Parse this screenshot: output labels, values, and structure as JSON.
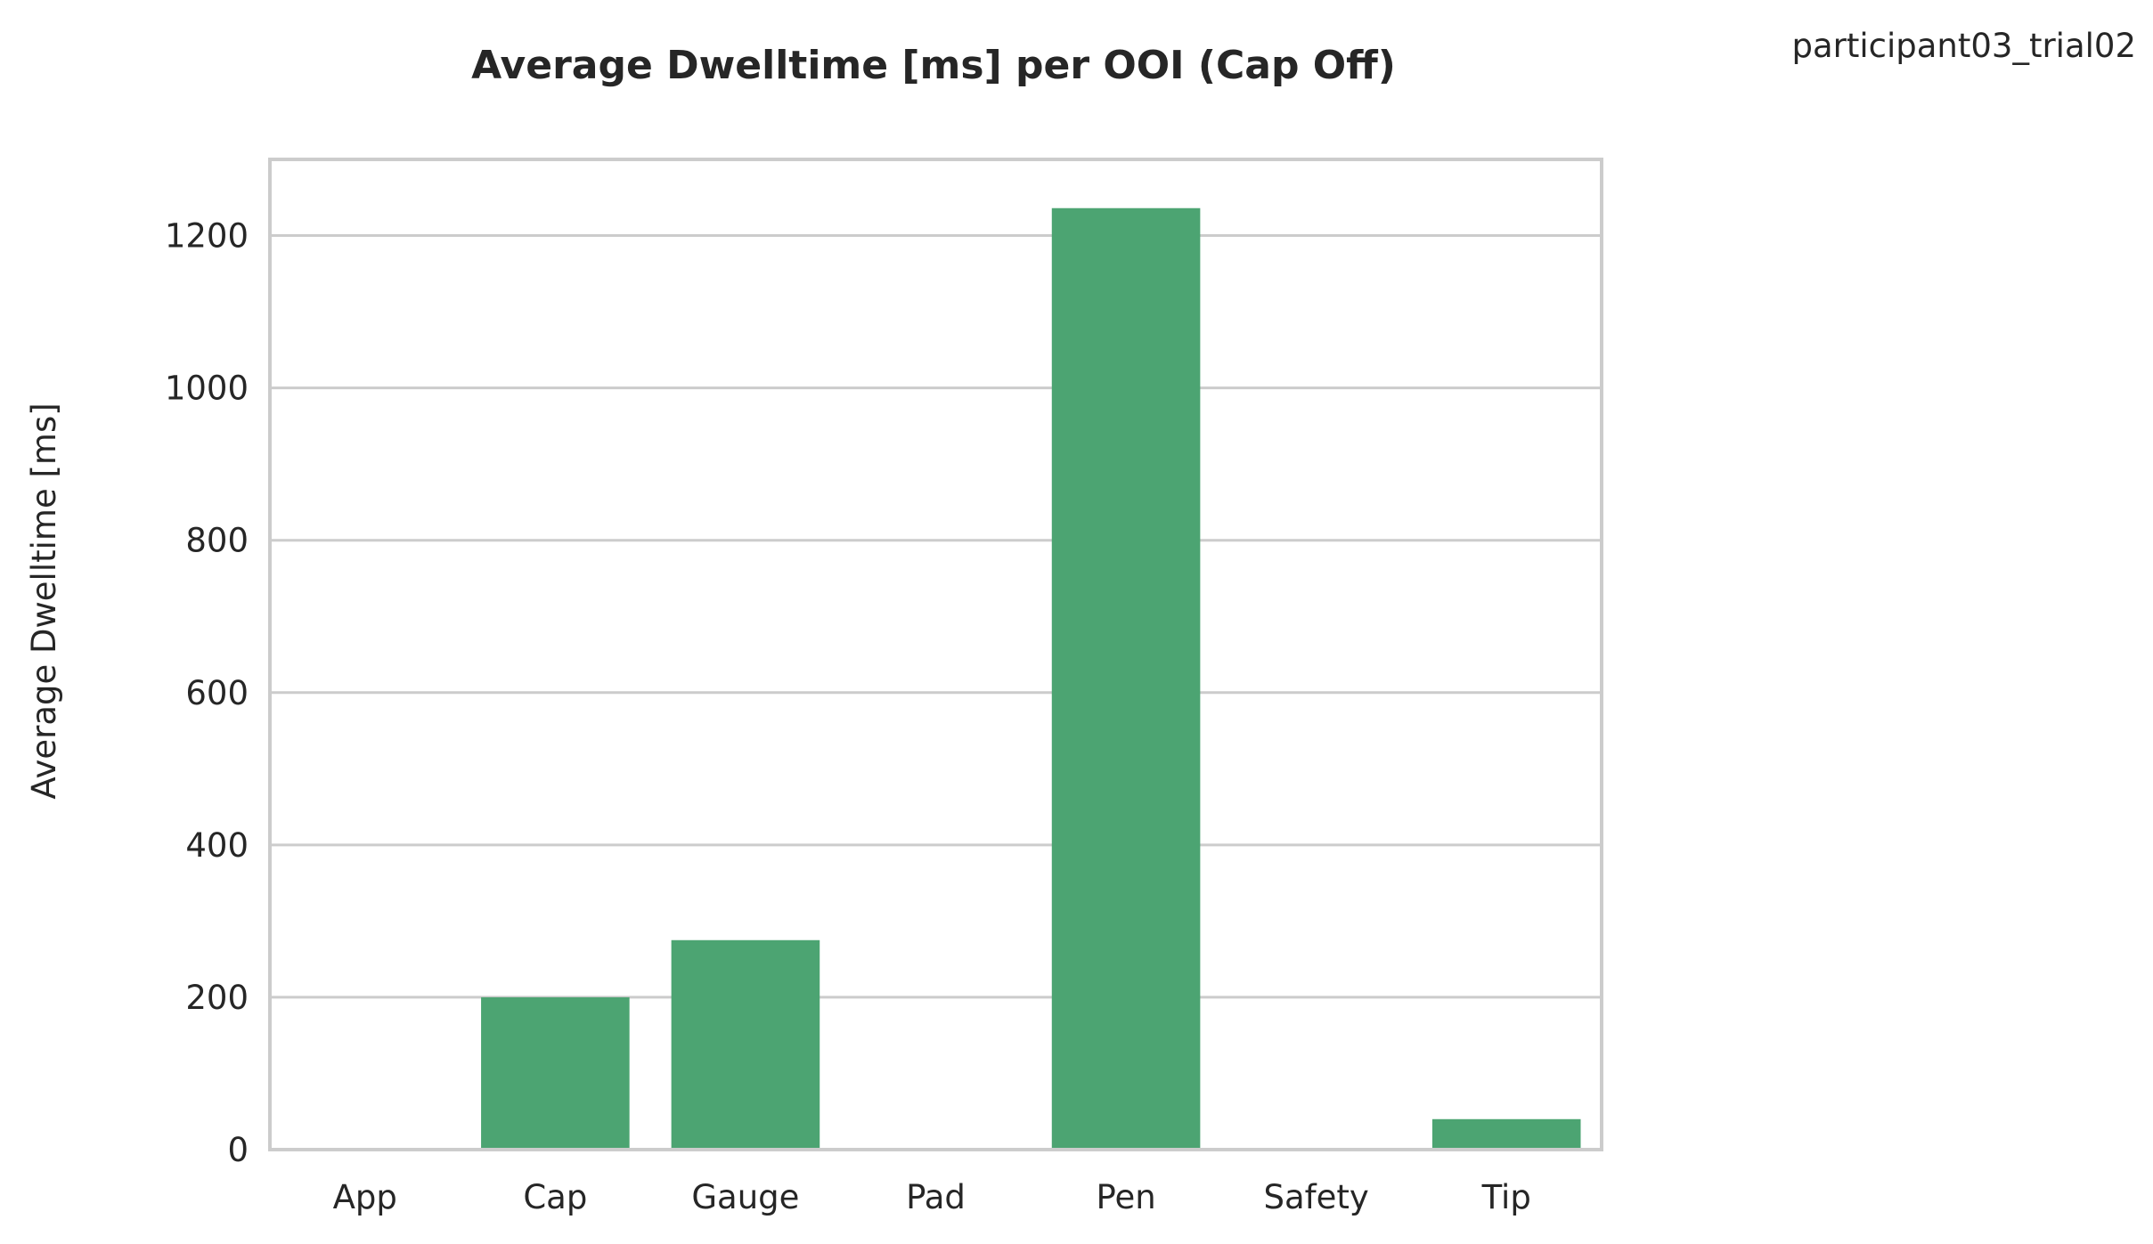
{
  "chart_data": {
    "type": "bar",
    "title": "Average Dwelltime [ms] per OOI (Cap Off)",
    "corner_label": "participant03_trial02",
    "xlabel": "",
    "ylabel": "Average Dwelltime [ms]",
    "categories": [
      "App",
      "Cap",
      "Gauge",
      "Pad",
      "Pen",
      "Safety",
      "Tip"
    ],
    "values": [
      0,
      200,
      275,
      0,
      1236,
      0,
      40
    ],
    "ylim": [
      0,
      1300
    ],
    "yticks": [
      0,
      200,
      400,
      600,
      800,
      1000,
      1200
    ],
    "grid": true,
    "grid_axis": "y",
    "legend": "none",
    "bar_color": "#4ca472",
    "grid_color": "#cccccc",
    "text_color": "#262626"
  }
}
